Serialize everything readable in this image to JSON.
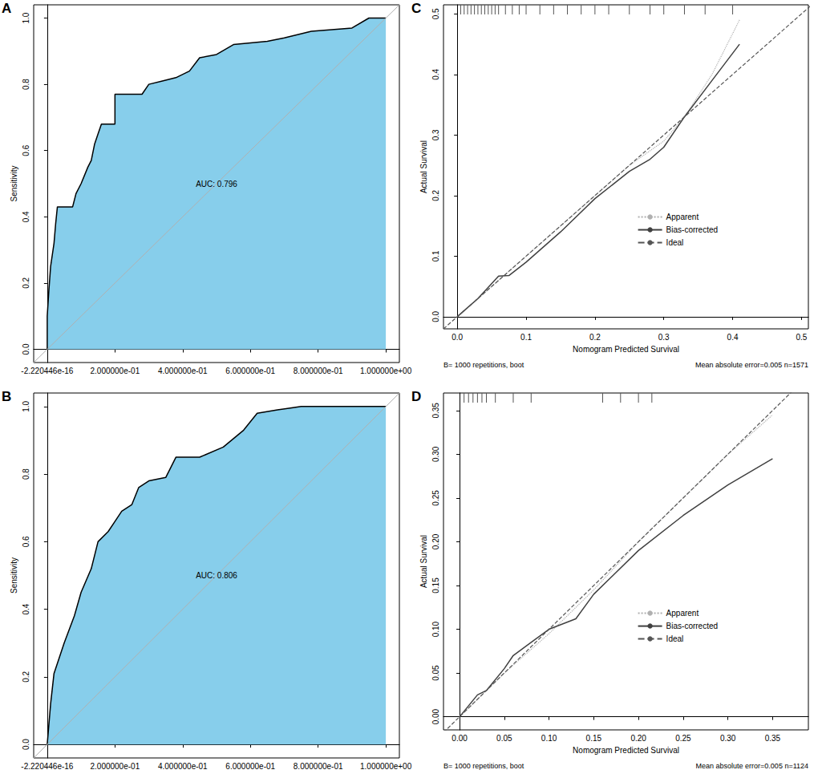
{
  "chart_data": [
    {
      "type": "area",
      "title": "A",
      "ylabel": "Sensitivity",
      "annotation": "AUC: 0.796",
      "xlim": [
        -0.04,
        1.04
      ],
      "ylim": [
        -0.04,
        1.04
      ],
      "xticks": [
        {
          "value": -2.220446e-16,
          "label": "-2.220446e-16"
        },
        {
          "value": 0.2,
          "label": "2.000000e-01"
        },
        {
          "value": 0.4,
          "label": "4.000000e-01"
        },
        {
          "value": 0.6,
          "label": "6.000000e-01"
        },
        {
          "value": 0.8,
          "label": "8.000000e-01"
        },
        {
          "value": 1,
          "label": "1.000000e+00"
        }
      ],
      "yticks": [
        {
          "value": 0,
          "label": "0.0"
        },
        0.2,
        0.4,
        0.6,
        0.8,
        {
          "value": 1,
          "label": "1.0"
        }
      ],
      "grid": false,
      "reference": {
        "color": "#b0b0b0",
        "values": [
          [
            -0.04,
            -0.04
          ],
          [
            1.04,
            1.04
          ]
        ]
      },
      "series": [
        {
          "color": "#87ceeb",
          "values": [
            [
              0,
              0
            ],
            [
              0,
              0.1
            ],
            [
              0.005,
              0.18
            ],
            [
              0.01,
              0.25
            ],
            [
              0.02,
              0.32
            ],
            [
              0.025,
              0.38
            ],
            [
              0.03,
              0.43
            ],
            [
              0.075,
              0.43
            ],
            [
              0.085,
              0.47
            ],
            [
              0.1,
              0.5
            ],
            [
              0.12,
              0.55
            ],
            [
              0.13,
              0.57
            ],
            [
              0.14,
              0.62
            ],
            [
              0.15,
              0.65
            ],
            [
              0.16,
              0.68
            ],
            [
              0.2,
              0.68
            ],
            [
              0.2,
              0.77
            ],
            [
              0.28,
              0.77
            ],
            [
              0.3,
              0.8
            ],
            [
              0.34,
              0.81
            ],
            [
              0.38,
              0.82
            ],
            [
              0.42,
              0.84
            ],
            [
              0.45,
              0.88
            ],
            [
              0.5,
              0.89
            ],
            [
              0.55,
              0.92
            ],
            [
              0.65,
              0.93
            ],
            [
              0.7,
              0.94
            ],
            [
              0.78,
              0.96
            ],
            [
              0.9,
              0.97
            ],
            [
              0.95,
              1
            ],
            [
              1,
              1
            ]
          ]
        }
      ]
    },
    {
      "type": "area",
      "title": "B",
      "ylabel": "Sensitivity",
      "annotation": "AUC: 0.806",
      "xlim": [
        -0.04,
        1.04
      ],
      "ylim": [
        -0.04,
        1.04
      ],
      "xticks": [
        {
          "value": -2.220446e-16,
          "label": "-2.220446e-16"
        },
        {
          "value": 0.2,
          "label": "2.000000e-01"
        },
        {
          "value": 0.4,
          "label": "4.000000e-01"
        },
        {
          "value": 0.6,
          "label": "6.000000e-01"
        },
        {
          "value": 0.8,
          "label": "8.000000e-01"
        },
        {
          "value": 1,
          "label": "1.000000e+00"
        }
      ],
      "yticks": [
        {
          "value": 0,
          "label": "0.0"
        },
        0.2,
        0.4,
        0.6,
        0.8,
        {
          "value": 1,
          "label": "1.0"
        }
      ],
      "grid": false,
      "reference": {
        "color": "#b0b0b0",
        "values": [
          [
            -0.04,
            -0.04
          ],
          [
            1.04,
            1.04
          ]
        ]
      },
      "series": [
        {
          "color": "#87ceeb",
          "values": [
            [
              0,
              0
            ],
            [
              0.01,
              0.12
            ],
            [
              0.02,
              0.21
            ],
            [
              0.05,
              0.3
            ],
            [
              0.08,
              0.38
            ],
            [
              0.1,
              0.45
            ],
            [
              0.13,
              0.52
            ],
            [
              0.15,
              0.6
            ],
            [
              0.18,
              0.63
            ],
            [
              0.2,
              0.66
            ],
            [
              0.22,
              0.69
            ],
            [
              0.25,
              0.71
            ],
            [
              0.27,
              0.76
            ],
            [
              0.3,
              0.78
            ],
            [
              0.35,
              0.79
            ],
            [
              0.38,
              0.85
            ],
            [
              0.45,
              0.85
            ],
            [
              0.52,
              0.88
            ],
            [
              0.58,
              0.93
            ],
            [
              0.62,
              0.98
            ],
            [
              0.68,
              0.99
            ],
            [
              0.75,
              1
            ],
            [
              1,
              1
            ]
          ]
        }
      ]
    },
    {
      "type": "line",
      "title": "C",
      "xlabel": "Nomogram Predicted Survival",
      "ylabel": "Actual Survival",
      "notes": [
        "B= 1000 repetitions, boot",
        "Mean absolute error=0.005 n=1571"
      ],
      "legend": "right",
      "grid": false,
      "xlim": [
        -0.02,
        0.51
      ],
      "ylim": [
        -0.02,
        0.515
      ],
      "xticks": [
        {
          "value": 0,
          "label": "0.0"
        },
        0.1,
        0.2,
        0.3,
        0.4,
        0.5
      ],
      "yticks": [
        {
          "value": 0,
          "label": "0.0"
        },
        0.1,
        0.2,
        0.3,
        0.4,
        0.5
      ],
      "rug": [
        0.005,
        0.01,
        0.015,
        0.02,
        0.025,
        0.03,
        0.035,
        0.04,
        0.045,
        0.05,
        0.055,
        0.06,
        0.07,
        0.08,
        0.09,
        0.1,
        0.12,
        0.14,
        0.16,
        0.18,
        0.2,
        0.22,
        0.25,
        0.28,
        0.3,
        0.33,
        0.36,
        0.4
      ],
      "series": [
        {
          "name": "Apparent",
          "color": "#b0b0b0",
          "line_style": "dotted",
          "values": [
            [
              0,
              0
            ],
            [
              0.05,
              0.05
            ],
            [
              0.1,
              0.1
            ],
            [
              0.2,
              0.2
            ],
            [
              0.25,
              0.25
            ],
            [
              0.3,
              0.29
            ],
            [
              0.33,
              0.33
            ],
            [
              0.37,
              0.4
            ],
            [
              0.41,
              0.49
            ]
          ]
        },
        {
          "name": "Bias-corrected",
          "color": "#404040",
          "line_style": "solid",
          "values": [
            [
              0,
              0
            ],
            [
              0.03,
              0.03
            ],
            [
              0.06,
              0.067
            ],
            [
              0.075,
              0.068
            ],
            [
              0.1,
              0.09
            ],
            [
              0.15,
              0.14
            ],
            [
              0.2,
              0.195
            ],
            [
              0.25,
              0.24
            ],
            [
              0.28,
              0.26
            ],
            [
              0.3,
              0.28
            ],
            [
              0.33,
              0.33
            ],
            [
              0.37,
              0.39
            ],
            [
              0.41,
              0.45
            ]
          ]
        },
        {
          "name": "Ideal",
          "color": "#555555",
          "line_style": "dashed",
          "values": [
            [
              -0.02,
              -0.02
            ],
            [
              0.515,
              0.515
            ]
          ]
        }
      ]
    },
    {
      "type": "line",
      "title": "D",
      "xlabel": "Nomogram Predicted Survival",
      "ylabel": "Actual Survival",
      "notes": [
        "B= 1000 repetitions, boot",
        "Mean absolute error=0.005 n=1124"
      ],
      "legend": "right",
      "grid": false,
      "xlim": [
        -0.018,
        0.39
      ],
      "ylim": [
        -0.015,
        0.37
      ],
      "xticks": [
        {
          "value": 0,
          "label": "0.00"
        },
        0.05,
        {
          "value": 0.1,
          "label": "0.10"
        },
        0.15,
        {
          "value": 0.2,
          "label": "0.20"
        },
        0.25,
        {
          "value": 0.3,
          "label": "0.30"
        },
        0.35
      ],
      "yticks": [
        {
          "value": 0,
          "label": "0.00"
        },
        0.05,
        {
          "value": 0.1,
          "label": "0.10"
        },
        0.15,
        {
          "value": 0.2,
          "label": "0.20"
        },
        0.25,
        {
          "value": 0.3,
          "label": "0.30"
        },
        0.35
      ],
      "rug": [
        0.005,
        0.01,
        0.015,
        0.02,
        0.025,
        0.03,
        0.04,
        0.06,
        0.08,
        0.16,
        0.18,
        0.2,
        0.215
      ],
      "series": [
        {
          "name": "Apparent",
          "color": "#b0b0b0",
          "line_style": "dotted",
          "values": [
            [
              0,
              0
            ],
            [
              0.05,
              0.05
            ],
            [
              0.1,
              0.095
            ],
            [
              0.15,
              0.145
            ],
            [
              0.2,
              0.2
            ],
            [
              0.25,
              0.25
            ],
            [
              0.3,
              0.3
            ],
            [
              0.35,
              0.345
            ]
          ]
        },
        {
          "name": "Bias-corrected",
          "color": "#404040",
          "line_style": "solid",
          "values": [
            [
              0,
              0
            ],
            [
              0.02,
              0.025
            ],
            [
              0.03,
              0.03
            ],
            [
              0.05,
              0.055
            ],
            [
              0.06,
              0.07
            ],
            [
              0.08,
              0.085
            ],
            [
              0.1,
              0.1
            ],
            [
              0.13,
              0.112
            ],
            [
              0.15,
              0.14
            ],
            [
              0.2,
              0.19
            ],
            [
              0.25,
              0.23
            ],
            [
              0.3,
              0.265
            ],
            [
              0.35,
              0.295
            ]
          ]
        },
        {
          "name": "Ideal",
          "color": "#555555",
          "line_style": "dashed",
          "values": [
            [
              -0.018,
              -0.018
            ],
            [
              0.39,
              0.39
            ]
          ]
        }
      ]
    }
  ]
}
